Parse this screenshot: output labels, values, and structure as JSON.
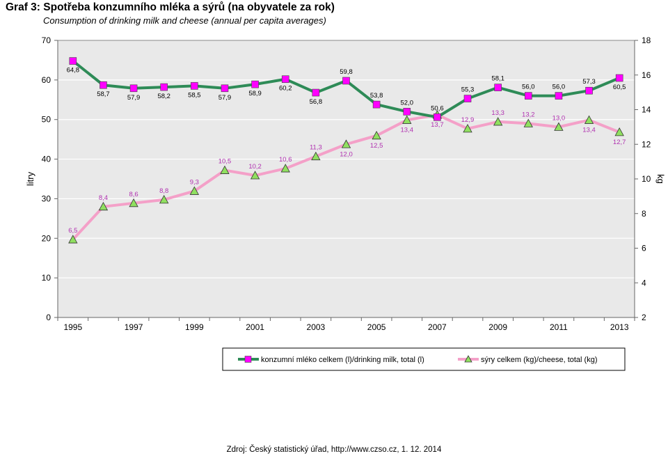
{
  "title": "Graf 3: Spotřeba konzumního mléka a sýrů (na obyvatele za rok)",
  "subtitle": "Consumption of drinking milk and cheese (annual per capita averages)",
  "source": "Zdroj: Český statistický úřad, http://www.czso.cz, 1. 12. 2014",
  "colors": {
    "milk_line": "#2e8b57",
    "milk_marker": "#ff00ff",
    "cheese_line": "#f4a0c8",
    "cheese_marker": "#90e060",
    "cheese_label": "#b030b0",
    "plot_bg": "#e9e9e9",
    "grid": "#ffffff"
  },
  "chart_data": {
    "type": "line",
    "title": "Graf 3: Spotřeba konzumního mléka a sýrů (na obyvatele za rok)",
    "subtitle": "Consumption of drinking milk and cheese (annual per capita averages)",
    "x": [
      1995,
      1996,
      1997,
      1998,
      1999,
      2000,
      2001,
      2002,
      2003,
      2004,
      2005,
      2006,
      2007,
      2008,
      2009,
      2010,
      2011,
      2012,
      2013
    ],
    "x_tick_labels": [
      "1995",
      "1997",
      "1999",
      "2001",
      "2003",
      "2005",
      "2007",
      "2009",
      "2011",
      "2013"
    ],
    "ylabel_left": "litry",
    "ylabel_right": "kg",
    "ylim_left": [
      0,
      70
    ],
    "ylim_right": [
      2,
      18
    ],
    "y_ticks_left": [
      "0",
      "10",
      "20",
      "30",
      "40",
      "50",
      "60",
      "70"
    ],
    "y_ticks_right": [
      "2",
      "4",
      "6",
      "8",
      "10",
      "12",
      "14",
      "16",
      "18"
    ],
    "grid": true,
    "legend_position": "bottom-right",
    "series": [
      {
        "name": "konzumní mléko celkem (l)/drinking milk, total (l)",
        "axis": "left",
        "marker": "square",
        "values": [
          64.8,
          58.7,
          57.9,
          58.2,
          58.5,
          57.9,
          58.9,
          60.2,
          56.8,
          59.8,
          53.8,
          52.0,
          50.6,
          55.3,
          58.1,
          56.0,
          56.0,
          57.3,
          60.5
        ],
        "labels": [
          "64,8",
          "58,7",
          "57,9",
          "58,2",
          "58,5",
          "57,9",
          "58,9",
          "60,2",
          "56,8",
          "59,8",
          "53,8",
          "52,0",
          "50,6",
          "55,3",
          "58,1",
          "56,0",
          "56,0",
          "57,3",
          "60,5"
        ]
      },
      {
        "name": "sýry celkem (kg)/cheese, total (kg)",
        "axis": "right",
        "marker": "triangle",
        "values": [
          6.5,
          8.4,
          8.6,
          8.8,
          9.3,
          10.5,
          10.2,
          10.6,
          11.3,
          12.0,
          12.5,
          13.4,
          13.7,
          12.9,
          13.3,
          13.2,
          13.0,
          13.4,
          12.7
        ],
        "labels": [
          "6,5",
          "8,4",
          "8,6",
          "8,8",
          "9,3",
          "10,5",
          "10,2",
          "10,6",
          "11,3",
          "12,0",
          "12,5",
          "13,4",
          "13,7",
          "12,9",
          "13,3",
          "13,2",
          "13,0",
          "13,4",
          "12,7"
        ]
      }
    ]
  }
}
